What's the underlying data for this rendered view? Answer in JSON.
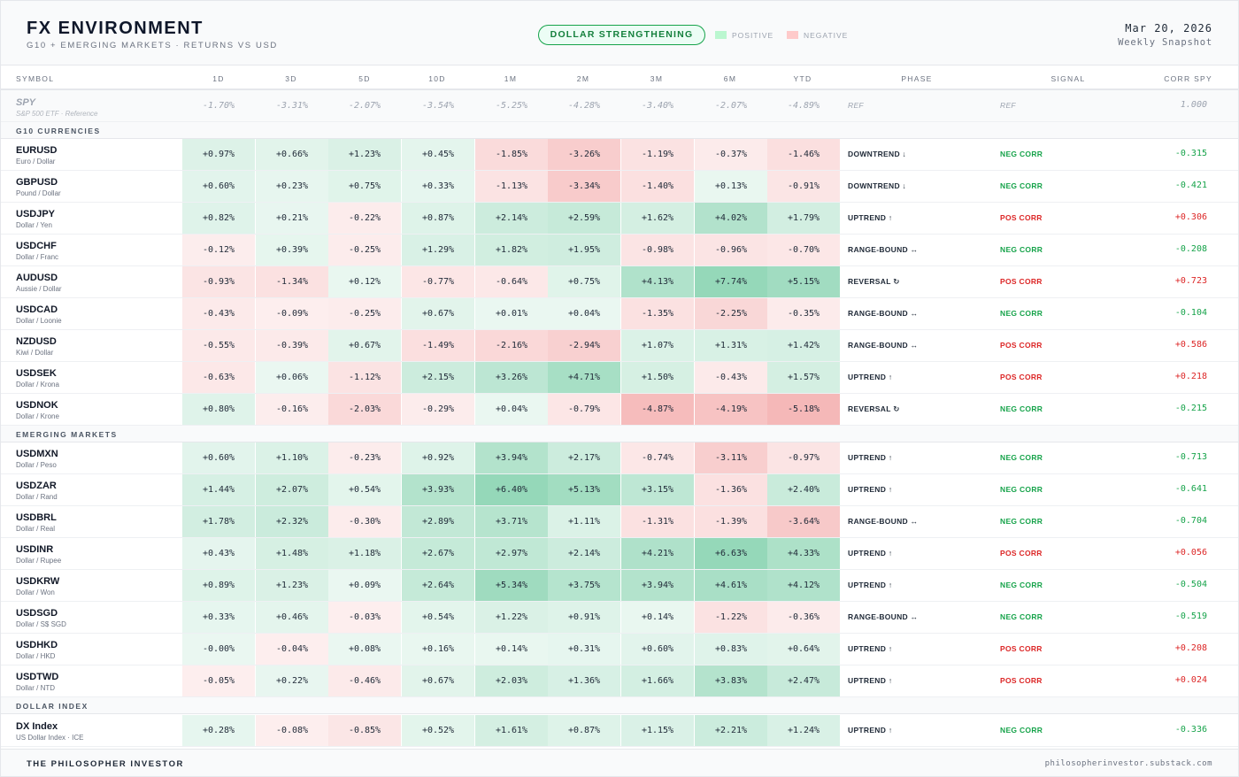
{
  "header": {
    "title": "FX ENVIRONMENT",
    "subtitle": "G10 + EMERGING MARKETS · RETURNS VS USD",
    "regime_badge": "DOLLAR STRENGTHENING",
    "legend_positive": "POSITIVE",
    "legend_negative": "NEGATIVE",
    "date": "Mar 20, 2026",
    "snapshot": "Weekly Snapshot"
  },
  "colors": {
    "positive": "#16a34a",
    "negative": "#dc2626",
    "legend_positive": "#bbf7d0",
    "legend_negative": "#fecaca"
  },
  "columns": [
    "SYMBOL",
    "1D",
    "3D",
    "5D",
    "10D",
    "1M",
    "2M",
    "3M",
    "6M",
    "YTD",
    "PHASE",
    "SIGNAL",
    "CORR SPY"
  ],
  "reference": {
    "symbol": "SPY",
    "name": "S&P 500 ETF · Reference",
    "values": [
      "-1.70%",
      "-3.31%",
      "-2.07%",
      "-3.54%",
      "-5.25%",
      "-4.28%",
      "-3.40%",
      "-2.07%",
      "-4.89%"
    ],
    "phase": "REF",
    "signal": "REF",
    "corr": "1.000"
  },
  "sections": [
    {
      "title": "G10 CURRENCIES",
      "rows": [
        {
          "symbol": "EURUSD",
          "name": "Euro / Dollar",
          "values": [
            "+0.97%",
            "+0.66%",
            "+1.23%",
            "+0.45%",
            "-1.85%",
            "-3.26%",
            "-1.19%",
            "-0.37%",
            "-1.46%"
          ],
          "phase": "DOWNTREND ↓",
          "signal": "NEG CORR",
          "corr": "-0.315"
        },
        {
          "symbol": "GBPUSD",
          "name": "Pound / Dollar",
          "values": [
            "+0.60%",
            "+0.23%",
            "+0.75%",
            "+0.33%",
            "-1.13%",
            "-3.34%",
            "-1.40%",
            "+0.13%",
            "-0.91%"
          ],
          "phase": "DOWNTREND ↓",
          "signal": "NEG CORR",
          "corr": "-0.421"
        },
        {
          "symbol": "USDJPY",
          "name": "Dollar / Yen",
          "values": [
            "+0.82%",
            "+0.21%",
            "-0.22%",
            "+0.87%",
            "+2.14%",
            "+2.59%",
            "+1.62%",
            "+4.02%",
            "+1.79%"
          ],
          "phase": "UPTREND ↑",
          "signal": "POS CORR",
          "corr": "+0.306"
        },
        {
          "symbol": "USDCHF",
          "name": "Dollar / Franc",
          "values": [
            "-0.12%",
            "+0.39%",
            "-0.25%",
            "+1.29%",
            "+1.82%",
            "+1.95%",
            "-0.98%",
            "-0.96%",
            "-0.70%"
          ],
          "phase": "RANGE-BOUND ↔",
          "signal": "NEG CORR",
          "corr": "-0.208"
        },
        {
          "symbol": "AUDUSD",
          "name": "Aussie / Dollar",
          "values": [
            "-0.93%",
            "-1.34%",
            "+0.12%",
            "-0.77%",
            "-0.64%",
            "+0.75%",
            "+4.13%",
            "+7.74%",
            "+5.15%"
          ],
          "phase": "REVERSAL ↻",
          "signal": "POS CORR",
          "corr": "+0.723"
        },
        {
          "symbol": "USDCAD",
          "name": "Dollar / Loonie",
          "values": [
            "-0.43%",
            "-0.09%",
            "-0.25%",
            "+0.67%",
            "+0.01%",
            "+0.04%",
            "-1.35%",
            "-2.25%",
            "-0.35%"
          ],
          "phase": "RANGE-BOUND ↔",
          "signal": "NEG CORR",
          "corr": "-0.104"
        },
        {
          "symbol": "NZDUSD",
          "name": "Kiwi / Dollar",
          "values": [
            "-0.55%",
            "-0.39%",
            "+0.67%",
            "-1.49%",
            "-2.16%",
            "-2.94%",
            "+1.07%",
            "+1.31%",
            "+1.42%"
          ],
          "phase": "RANGE-BOUND ↔",
          "signal": "POS CORR",
          "corr": "+0.586"
        },
        {
          "symbol": "USDSEK",
          "name": "Dollar / Krona",
          "values": [
            "-0.63%",
            "+0.06%",
            "-1.12%",
            "+2.15%",
            "+3.26%",
            "+4.71%",
            "+1.50%",
            "-0.43%",
            "+1.57%"
          ],
          "phase": "UPTREND ↑",
          "signal": "POS CORR",
          "corr": "+0.218"
        },
        {
          "symbol": "USDNOK",
          "name": "Dollar / Krone",
          "values": [
            "+0.80%",
            "-0.16%",
            "-2.03%",
            "-0.29%",
            "+0.04%",
            "-0.79%",
            "-4.87%",
            "-4.19%",
            "-5.18%"
          ],
          "phase": "REVERSAL ↻",
          "signal": "NEG CORR",
          "corr": "-0.215"
        }
      ]
    },
    {
      "title": "EMERGING MARKETS",
      "rows": [
        {
          "symbol": "USDMXN",
          "name": "Dollar / Peso",
          "values": [
            "+0.60%",
            "+1.10%",
            "-0.23%",
            "+0.92%",
            "+3.94%",
            "+2.17%",
            "-0.74%",
            "-3.11%",
            "-0.97%"
          ],
          "phase": "UPTREND ↑",
          "signal": "NEG CORR",
          "corr": "-0.713"
        },
        {
          "symbol": "USDZAR",
          "name": "Dollar / Rand",
          "values": [
            "+1.44%",
            "+2.07%",
            "+0.54%",
            "+3.93%",
            "+6.40%",
            "+5.13%",
            "+3.15%",
            "-1.36%",
            "+2.40%"
          ],
          "phase": "UPTREND ↑",
          "signal": "NEG CORR",
          "corr": "-0.641"
        },
        {
          "symbol": "USDBRL",
          "name": "Dollar / Real",
          "values": [
            "+1.78%",
            "+2.32%",
            "-0.30%",
            "+2.89%",
            "+3.71%",
            "+1.11%",
            "-1.31%",
            "-1.39%",
            "-3.64%"
          ],
          "phase": "RANGE-BOUND ↔",
          "signal": "NEG CORR",
          "corr": "-0.704"
        },
        {
          "symbol": "USDINR",
          "name": "Dollar / Rupee",
          "values": [
            "+0.43%",
            "+1.48%",
            "+1.18%",
            "+2.67%",
            "+2.97%",
            "+2.14%",
            "+4.21%",
            "+6.63%",
            "+4.33%"
          ],
          "phase": "UPTREND ↑",
          "signal": "POS CORR",
          "corr": "+0.056"
        },
        {
          "symbol": "USDKRW",
          "name": "Dollar / Won",
          "values": [
            "+0.89%",
            "+1.23%",
            "+0.09%",
            "+2.64%",
            "+5.34%",
            "+3.75%",
            "+3.94%",
            "+4.61%",
            "+4.12%"
          ],
          "phase": "UPTREND ↑",
          "signal": "NEG CORR",
          "corr": "-0.504"
        },
        {
          "symbol": "USDSGD",
          "name": "Dollar / S$ SGD",
          "values": [
            "+0.33%",
            "+0.46%",
            "-0.03%",
            "+0.54%",
            "+1.22%",
            "+0.91%",
            "+0.14%",
            "-1.22%",
            "-0.36%"
          ],
          "phase": "RANGE-BOUND ↔",
          "signal": "NEG CORR",
          "corr": "-0.519"
        },
        {
          "symbol": "USDHKD",
          "name": "Dollar / HKD",
          "values": [
            "-0.00%",
            "-0.04%",
            "+0.08%",
            "+0.16%",
            "+0.14%",
            "+0.31%",
            "+0.60%",
            "+0.83%",
            "+0.64%"
          ],
          "phase": "UPTREND ↑",
          "signal": "POS CORR",
          "corr": "+0.208"
        },
        {
          "symbol": "USDTWD",
          "name": "Dollar / NTD",
          "values": [
            "-0.05%",
            "+0.22%",
            "-0.46%",
            "+0.67%",
            "+2.03%",
            "+1.36%",
            "+1.66%",
            "+3.83%",
            "+2.47%"
          ],
          "phase": "UPTREND ↑",
          "signal": "POS CORR",
          "corr": "+0.024"
        }
      ]
    },
    {
      "title": "DOLLAR INDEX",
      "rows": [
        {
          "symbol": "DX Index",
          "name": "US Dollar Index · ICE",
          "values": [
            "+0.28%",
            "-0.08%",
            "-0.85%",
            "+0.52%",
            "+1.61%",
            "+0.87%",
            "+1.15%",
            "+2.21%",
            "+1.24%"
          ],
          "phase": "UPTREND ↑",
          "signal": "NEG CORR",
          "corr": "-0.336"
        }
      ]
    }
  ],
  "footer": {
    "brand": "THE PHILOSOPHER INVESTOR",
    "site": "philosopherinvestor.substack.com"
  }
}
